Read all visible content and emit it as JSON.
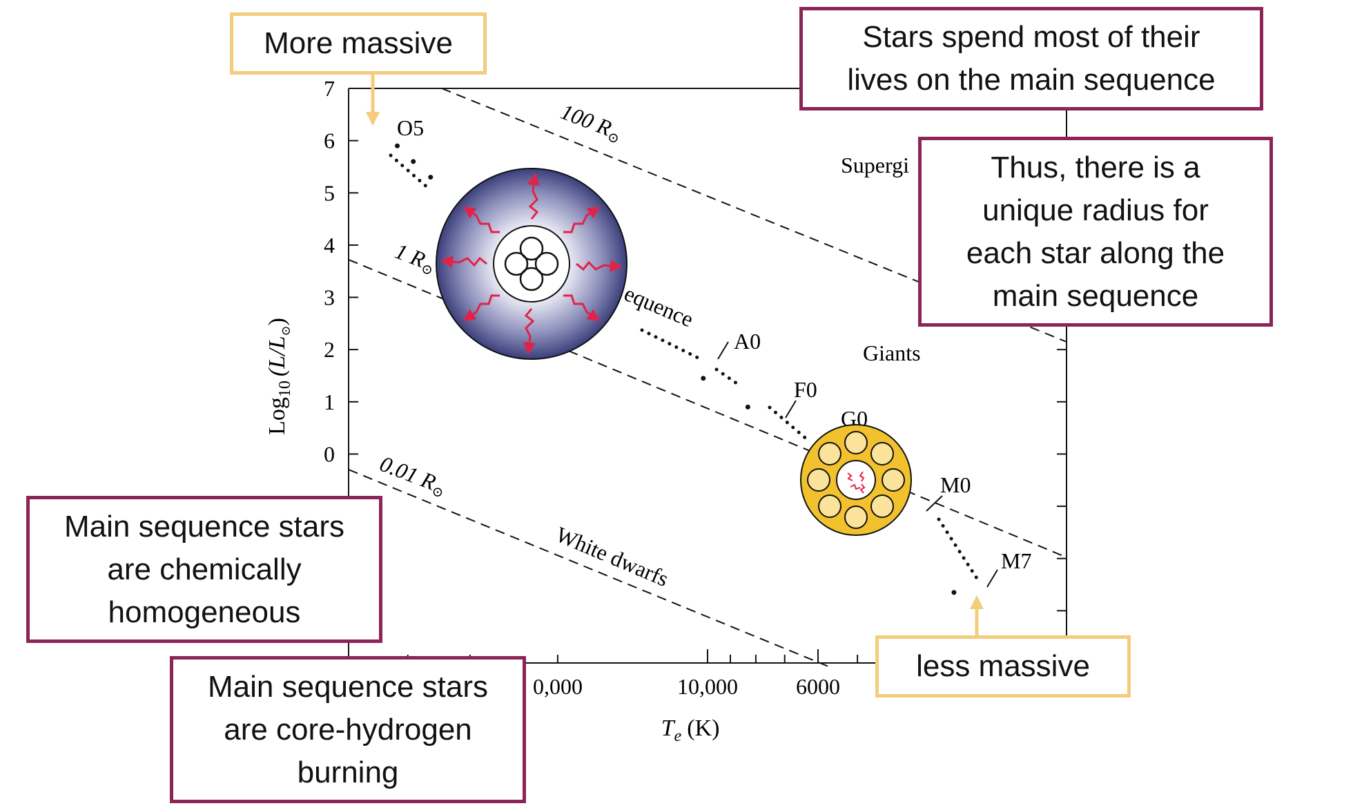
{
  "chart_data": {
    "type": "scatter",
    "title": "",
    "xlabel": "T",
    "xlabel_sub": "e",
    "xlabel_unit": "(K)",
    "ylabel": "Log",
    "ylabel_sub": "10",
    "ylabel_rest": "(L/L",
    "ylabel_close": ")",
    "ylim": [
      -4,
      7
    ],
    "x_scale": "log, reversed",
    "y_ticks": [
      "7",
      "6",
      "5",
      "4",
      "3",
      "2",
      "1",
      "0"
    ],
    "x_ticks": [
      "0,000",
      "10,000",
      "6000"
    ],
    "series": [
      {
        "points": [
          {
            "x": 42000,
            "y": 5.9
          },
          {
            "x": 39000,
            "y": 5.6
          },
          {
            "x": 36000,
            "y": 5.3
          },
          {
            "x": 10200,
            "y": 1.45
          },
          {
            "x": 8300,
            "y": 0.9
          },
          {
            "x": 6000,
            "y": 0.05
          },
          {
            "x": 4400,
            "y": -1.25
          },
          {
            "x": 3200,
            "y": -2.65
          }
        ]
      }
    ],
    "radius_lines": [
      {
        "label": "100 R",
        "sub": "⊙"
      },
      {
        "label": "1 R",
        "sub": "⊙"
      },
      {
        "label": "0.01 R",
        "sub": "⊙"
      }
    ],
    "spectral_labels": [
      "O5",
      "A0",
      "F0",
      "G0",
      "M0",
      "M7"
    ],
    "region_labels": {
      "main_sequence": "equence",
      "supergiants": "Supergi",
      "giants": "Giants",
      "white_dwarfs": "White dwarfs"
    }
  },
  "callouts": {
    "more_massive": "More massive",
    "less_massive": "less massive",
    "main_sequence_lives": "Stars spend most of their\nlives on the main sequence",
    "unique_radius": "Thus, there is a\nunique radius for\neach star along the\nmain sequence",
    "homogeneous": "Main sequence stars\nare chemically\nhomogeneous",
    "core_hydrogen": "Main sequence stars\nare core-hydrogen\nburning"
  },
  "colors": {
    "callout_border": "#8c2458",
    "massive_arrow": "#f3cc7c",
    "massive_star_core": "#ffffff",
    "massive_star_edge": "#3b3f7a",
    "low_mass_star": "#f2c12e",
    "radiation_arrows": "#e0234a"
  },
  "icons": {
    "massive_star": "massive-star-structure-icon",
    "low_mass_star": "low-mass-star-structure-icon"
  }
}
